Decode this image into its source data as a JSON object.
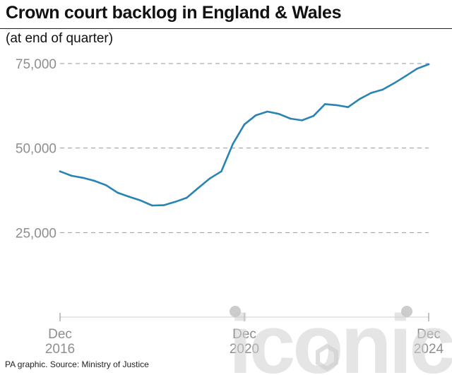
{
  "title": "Crown court backlog in England & Wales",
  "subtitle": "(at end of quarter)",
  "source": "PA graphic. Source: Ministry of Justice",
  "watermark_text": "iconic",
  "colors": {
    "line": "#2a84b3",
    "grid": "#9a9a9a",
    "tick_text": "#8e8e8e",
    "title": "#111111",
    "watermark": "#c7c7c7"
  },
  "chart_data": {
    "type": "line",
    "title": "Crown court backlog in England & Wales",
    "subtitle": "(at end of quarter)",
    "x": [
      "Dec 2016",
      "Mar 2017",
      "Jun 2017",
      "Sep 2017",
      "Dec 2017",
      "Mar 2018",
      "Jun 2018",
      "Sep 2018",
      "Dec 2018",
      "Mar 2019",
      "Jun 2019",
      "Sep 2019",
      "Dec 2019",
      "Mar 2020",
      "Jun 2020",
      "Sep 2020",
      "Dec 2020",
      "Mar 2021",
      "Jun 2021",
      "Sep 2021",
      "Dec 2021",
      "Mar 2022",
      "Jun 2022",
      "Sep 2022",
      "Dec 2022",
      "Mar 2023",
      "Jun 2023",
      "Sep 2023",
      "Dec 2023",
      "Mar 2024",
      "Jun 2024",
      "Sep 2024",
      "Dec 2024"
    ],
    "series": [
      {
        "values": [
          43100,
          41800,
          41200,
          40300,
          39000,
          36800,
          35600,
          34500,
          33000,
          33100,
          34100,
          35300,
          38200,
          41000,
          43100,
          51200,
          57000,
          59700,
          60800,
          60100,
          58700,
          58200,
          59500,
          63000,
          62700,
          62100,
          64500,
          66300,
          67300,
          69200,
          71300,
          73500,
          74800
        ]
      }
    ],
    "x_ticks": [
      {
        "line1": "Dec",
        "line2": "2016",
        "index": 0
      },
      {
        "line1": "Dec",
        "line2": "2020",
        "index": 16
      },
      {
        "line1": "Dec",
        "line2": "2024",
        "index": 32
      }
    ],
    "y_ticks": [
      {
        "value": 25000,
        "label": "25,000"
      },
      {
        "value": 50000,
        "label": "50,000"
      },
      {
        "value": 75000,
        "label": "75,000"
      }
    ],
    "ylim": [
      0,
      75000
    ],
    "grid": true,
    "legend": "none"
  }
}
